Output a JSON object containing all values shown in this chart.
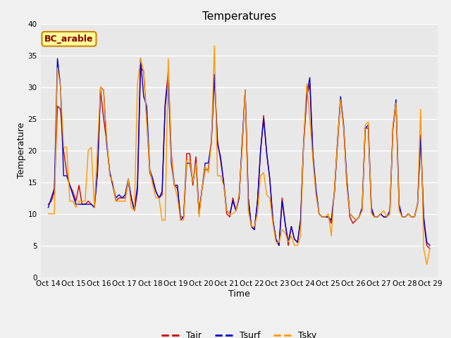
{
  "title": "Temperatures",
  "xlabel": "Time",
  "ylabel": "Temperature",
  "legend_label": "BC_arable",
  "line_labels": [
    "Tair",
    "Tsurf",
    "Tsky"
  ],
  "line_colors": [
    "#cc0000",
    "#0000cc",
    "#ff9900"
  ],
  "ylim": [
    0,
    40
  ],
  "yticks": [
    0,
    5,
    10,
    15,
    20,
    25,
    30,
    35,
    40
  ],
  "xtick_labels": [
    "Oct 14",
    "Oct 15",
    "Oct 16",
    "Oct 17",
    "Oct 18",
    "Oct 19",
    "Oct 20",
    "Oct 21",
    "Oct 22",
    "Oct 23",
    "Oct 24",
    "Oct 25",
    "Oct 26",
    "Oct 27",
    "Oct 28",
    "Oct 29"
  ],
  "background_color": "#f0f0f0",
  "plot_bg_color": "#e8e8e8",
  "title_fontsize": 11,
  "axis_label_fontsize": 9,
  "tick_fontsize": 7.5,
  "legend_box_color": "#ffff99",
  "legend_box_edge": "#cc8800",
  "legend_text_color": "#8b0000",
  "tair": [
    11.5,
    12.0,
    13.5,
    27.0,
    26.5,
    20.0,
    16.5,
    14.5,
    13.5,
    12.0,
    14.5,
    11.5,
    11.5,
    12.0,
    11.5,
    11.0,
    16.5,
    29.5,
    25.0,
    21.5,
    16.5,
    14.5,
    12.0,
    12.5,
    12.5,
    12.5,
    15.0,
    12.5,
    10.5,
    13.5,
    33.0,
    32.5,
    25.0,
    16.5,
    15.0,
    13.5,
    12.5,
    13.0,
    27.5,
    32.5,
    19.5,
    14.5,
    14.0,
    9.5,
    9.5,
    19.5,
    19.5,
    14.5,
    19.0,
    10.0,
    14.0,
    17.0,
    17.0,
    21.5,
    32.0,
    21.5,
    18.5,
    15.0,
    10.0,
    9.5,
    12.5,
    10.5,
    12.5,
    20.5,
    29.5,
    12.5,
    8.0,
    7.5,
    12.0,
    20.0,
    25.5,
    19.5,
    15.5,
    9.0,
    6.0,
    5.0,
    12.5,
    8.5,
    5.0,
    8.0,
    6.0,
    5.5,
    9.0,
    21.0,
    28.5,
    30.5,
    19.0,
    13.5,
    10.0,
    9.5,
    9.5,
    9.5,
    8.5,
    13.5,
    21.0,
    28.0,
    23.5,
    15.0,
    9.5,
    8.5,
    9.0,
    9.5,
    10.5,
    23.5,
    23.5,
    10.5,
    9.5,
    9.5,
    10.0,
    9.5,
    9.5,
    10.0,
    23.5,
    27.5,
    11.0,
    9.5,
    9.5,
    10.0,
    9.5,
    9.5,
    11.5,
    22.5,
    9.0,
    5.0,
    4.5
  ],
  "tsurf": [
    11.0,
    12.5,
    14.0,
    34.5,
    30.0,
    16.0,
    16.0,
    14.5,
    13.0,
    11.5,
    11.5,
    11.5,
    11.5,
    11.5,
    11.5,
    11.0,
    16.5,
    30.0,
    29.5,
    21.0,
    16.5,
    14.5,
    12.5,
    13.0,
    12.5,
    13.0,
    15.5,
    12.5,
    10.5,
    14.5,
    34.5,
    28.5,
    27.0,
    17.0,
    15.5,
    13.5,
    12.5,
    13.5,
    27.0,
    31.5,
    18.0,
    14.5,
    14.5,
    9.0,
    9.5,
    18.0,
    18.0,
    15.0,
    18.0,
    10.0,
    14.0,
    18.0,
    18.0,
    21.0,
    32.0,
    21.0,
    19.0,
    15.0,
    10.5,
    10.0,
    12.0,
    10.5,
    12.5,
    21.0,
    29.5,
    12.5,
    8.0,
    7.5,
    12.0,
    20.0,
    25.0,
    19.5,
    15.5,
    9.0,
    6.0,
    5.0,
    12.0,
    8.5,
    5.5,
    8.0,
    6.0,
    5.5,
    9.0,
    21.5,
    29.0,
    31.5,
    19.5,
    14.0,
    10.0,
    9.5,
    9.5,
    9.5,
    9.0,
    13.5,
    21.5,
    28.5,
    24.0,
    15.5,
    10.0,
    9.5,
    9.0,
    9.5,
    11.0,
    23.5,
    24.0,
    11.0,
    9.5,
    9.5,
    10.0,
    9.5,
    9.5,
    10.5,
    23.5,
    28.0,
    11.5,
    9.5,
    9.5,
    10.0,
    9.5,
    9.5,
    11.5,
    22.0,
    9.5,
    5.5,
    5.0
  ],
  "tsky": [
    10.0,
    10.0,
    10.0,
    33.0,
    30.0,
    20.5,
    20.5,
    12.0,
    12.0,
    11.0,
    12.0,
    12.0,
    12.0,
    20.0,
    20.5,
    11.0,
    20.5,
    30.0,
    29.5,
    22.0,
    16.0,
    15.0,
    12.0,
    12.0,
    12.0,
    12.0,
    15.5,
    11.0,
    10.5,
    30.5,
    34.5,
    32.5,
    24.5,
    17.0,
    14.5,
    12.5,
    12.5,
    9.0,
    9.0,
    34.5,
    19.0,
    14.5,
    12.5,
    9.0,
    9.0,
    18.5,
    18.5,
    15.0,
    18.0,
    9.5,
    14.0,
    17.5,
    16.5,
    21.0,
    36.5,
    16.0,
    16.0,
    14.5,
    10.5,
    10.0,
    10.0,
    10.5,
    13.0,
    20.0,
    29.5,
    10.5,
    8.0,
    8.0,
    10.0,
    16.0,
    16.5,
    13.0,
    12.5,
    8.5,
    5.5,
    5.5,
    7.5,
    7.0,
    5.5,
    6.5,
    5.0,
    5.0,
    6.5,
    21.5,
    30.5,
    25.0,
    18.5,
    13.0,
    10.0,
    9.5,
    9.5,
    10.0,
    6.5,
    14.0,
    21.5,
    28.0,
    23.5,
    14.5,
    10.0,
    9.5,
    9.0,
    9.5,
    10.5,
    24.0,
    24.5,
    10.0,
    9.5,
    9.5,
    10.0,
    10.5,
    9.5,
    10.0,
    24.0,
    27.5,
    10.5,
    9.5,
    9.5,
    10.0,
    9.5,
    9.5,
    11.5,
    26.5,
    4.5,
    2.0,
    4.5
  ]
}
